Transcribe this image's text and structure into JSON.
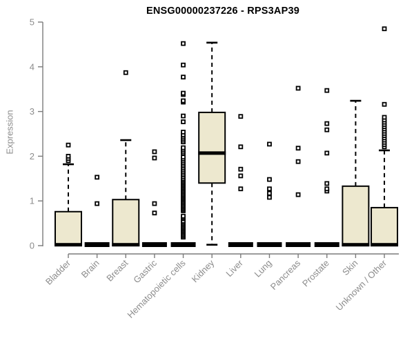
{
  "page": {
    "background": "#ffffff"
  },
  "chart_data": {
    "type": "boxplot",
    "title": "ENSG00000237226 - RPS3AP39",
    "ylabel": "Expression",
    "xlabel": "",
    "ylim": [
      0,
      5
    ],
    "yticks": [
      0,
      1,
      2,
      3,
      4,
      5
    ],
    "grid": false,
    "legend": "none",
    "categories": [
      "Bladder",
      "Brain",
      "Breast",
      "Gastric",
      "Hematopoietic cells",
      "Kidney",
      "Liver",
      "Lung",
      "Pancreas",
      "Prostate",
      "Skin",
      "Unknown / Other"
    ],
    "boxes": [
      {
        "category": "Bladder",
        "flat": false,
        "q1": 0,
        "median": 0.02,
        "q3": 0.76,
        "whisker_low": 0,
        "whisker_high": 1.82,
        "outliers": [
          1.9,
          1.95,
          2.0,
          2.25
        ]
      },
      {
        "category": "Brain",
        "flat": true,
        "q1": 0,
        "median": 0.01,
        "q3": 0.02,
        "whisker_low": 0,
        "whisker_high": 0.02,
        "outliers": [
          0.94,
          1.53
        ]
      },
      {
        "category": "Breast",
        "flat": false,
        "q1": 0,
        "median": 0.02,
        "q3": 1.03,
        "whisker_low": 0,
        "whisker_high": 2.36,
        "outliers": [
          3.87
        ]
      },
      {
        "category": "Gastric",
        "flat": true,
        "q1": 0,
        "median": 0.01,
        "q3": 0.02,
        "whisker_low": 0,
        "whisker_high": 0.02,
        "outliers": [
          0.73,
          0.94,
          1.96,
          2.1
        ]
      },
      {
        "category": "Hematopoietic cells",
        "flat": true,
        "q1": 0,
        "median": 0.01,
        "q3": 0.02,
        "whisker_low": 0,
        "whisker_high": 0.02,
        "outliers": [
          0.19,
          0.22,
          0.25,
          0.28,
          0.31,
          0.34,
          0.37,
          0.4,
          0.43,
          0.46,
          0.49,
          0.52,
          0.55,
          0.6,
          0.63,
          0.66,
          0.78,
          0.81,
          0.84,
          0.87,
          0.9,
          0.93,
          0.96,
          0.99,
          1.02,
          1.05,
          1.08,
          1.11,
          1.14,
          1.17,
          1.2,
          1.23,
          1.26,
          1.29,
          1.32,
          1.35,
          1.38,
          1.41,
          1.44,
          1.47,
          1.5,
          1.54,
          1.58,
          1.62,
          1.66,
          1.7,
          1.74,
          1.78,
          1.82,
          1.86,
          1.9,
          1.94,
          1.98,
          2.07,
          2.11,
          2.15,
          2.19,
          2.32,
          2.36,
          2.4,
          2.44,
          2.48,
          2.54,
          2.77,
          2.9,
          3.21,
          3.24,
          3.38,
          3.41,
          3.77,
          4.04,
          4.52
        ]
      },
      {
        "category": "Kidney",
        "flat": false,
        "q1": 1.4,
        "median": 2.07,
        "q3": 2.98,
        "whisker_low": 0.02,
        "whisker_high": 4.54,
        "outliers": []
      },
      {
        "category": "Liver",
        "flat": true,
        "q1": 0,
        "median": 0.01,
        "q3": 0.02,
        "whisker_low": 0,
        "whisker_high": 0.02,
        "outliers": [
          1.27,
          1.56,
          1.71,
          2.21,
          2.89
        ]
      },
      {
        "category": "Lung",
        "flat": true,
        "q1": 0,
        "median": 0.01,
        "q3": 0.02,
        "whisker_low": 0,
        "whisker_high": 0.02,
        "outliers": [
          1.08,
          1.17,
          1.27,
          1.48,
          2.27
        ]
      },
      {
        "category": "Pancreas",
        "flat": true,
        "q1": 0,
        "median": 0.01,
        "q3": 0.02,
        "whisker_low": 0,
        "whisker_high": 0.02,
        "outliers": [
          1.14,
          1.88,
          2.18,
          3.52
        ]
      },
      {
        "category": "Prostate",
        "flat": true,
        "q1": 0,
        "median": 0.01,
        "q3": 0.02,
        "whisker_low": 0,
        "whisker_high": 0.02,
        "outliers": [
          1.22,
          1.27,
          1.39,
          2.07,
          2.59,
          2.73,
          3.47
        ]
      },
      {
        "category": "Skin",
        "flat": false,
        "q1": 0,
        "median": 0.02,
        "q3": 1.33,
        "whisker_low": 0,
        "whisker_high": 3.24,
        "outliers": []
      },
      {
        "category": "Unknown / Other",
        "flat": false,
        "q1": 0,
        "median": 0.02,
        "q3": 0.85,
        "whisker_low": 0,
        "whisker_high": 2.13,
        "outliers": [
          2.21,
          2.26,
          2.31,
          2.36,
          2.41,
          2.46,
          2.51,
          2.56,
          2.61,
          2.66,
          2.71,
          2.76,
          2.81,
          2.87,
          3.16,
          4.85
        ]
      }
    ],
    "colors": {
      "box_fill": "#EDE8CF",
      "box_stroke": "#000000",
      "median": "#000000",
      "whisker": "#000000",
      "outlier_fill": "#ffffff",
      "outlier_stroke": "#000000",
      "axis": "#7a7a7a",
      "tick_text": "#8c8c8c",
      "title": "#000000"
    }
  }
}
